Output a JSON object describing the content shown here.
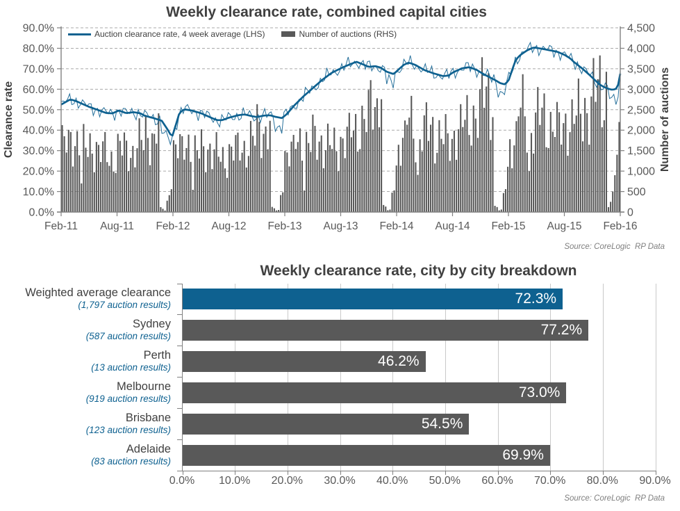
{
  "chart_data": [
    {
      "type": "line+bar",
      "title": "Weekly clearance rate, combined capital cities",
      "legend": [
        {
          "label": "Auction clearance rate, 4 week average (LHS)",
          "marker": "line",
          "color": "#0e6190"
        },
        {
          "label": "Number of auctions (RHS)",
          "marker": "bar",
          "color": "#595959"
        }
      ],
      "ylabel_left": "Clearance rate",
      "ylabel_right": "Number of auctions",
      "ylim_left": [
        0,
        90
      ],
      "ylim_right": [
        0,
        4500
      ],
      "y_left_tick_labels": [
        "0.0%",
        "10.0%",
        "20.0%",
        "30.0%",
        "40.0%",
        "50.0%",
        "60.0%",
        "70.0%",
        "80.0%",
        "90.0%"
      ],
      "y_right_tick_labels": [
        "0",
        "500",
        "1,000",
        "1,500",
        "2,000",
        "2,500",
        "3,000",
        "3,500",
        "4,000",
        "4,500"
      ],
      "x_tick_labels": [
        "Feb-11",
        "Aug-11",
        "Feb-12",
        "Aug-12",
        "Feb-13",
        "Aug-13",
        "Feb-14",
        "Aug-14",
        "Feb-15",
        "Aug-15",
        "Feb-16"
      ],
      "x_range_months": 60,
      "grid": "dashed-horizontal",
      "clearance_4wk_avg_points": [
        [
          0,
          52.5
        ],
        [
          0.7,
          54.3
        ],
        [
          1,
          55
        ],
        [
          1.6,
          54.2
        ],
        [
          2,
          53.4
        ],
        [
          3,
          51.4
        ],
        [
          4,
          49.8
        ],
        [
          4.8,
          48.4
        ],
        [
          5.5,
          48.2
        ],
        [
          6.2,
          49.6
        ],
        [
          7,
          48.3
        ],
        [
          7.8,
          48.8
        ],
        [
          8.5,
          48.2
        ],
        [
          9,
          47
        ],
        [
          10,
          45.8
        ],
        [
          10.8,
          44.6
        ],
        [
          11.4,
          40.5
        ],
        [
          11.9,
          36.6
        ],
        [
          12.3,
          42.5
        ],
        [
          12.7,
          48.5
        ],
        [
          13.2,
          50.2
        ],
        [
          14,
          49.6
        ],
        [
          15,
          48.3
        ],
        [
          16,
          46.3
        ],
        [
          16.7,
          44.9
        ],
        [
          17.3,
          44.9
        ],
        [
          18,
          46.1
        ],
        [
          19,
          47.3
        ],
        [
          19.7,
          47.7
        ],
        [
          20.4,
          46.9
        ],
        [
          21,
          46.4
        ],
        [
          21.7,
          47.1
        ],
        [
          22.4,
          47.3
        ],
        [
          23,
          46.5
        ],
        [
          23.7,
          45.9
        ],
        [
          24.2,
          47.8
        ],
        [
          25,
          52
        ],
        [
          26,
          56.5
        ],
        [
          27,
          60.5
        ],
        [
          28,
          64.5
        ],
        [
          29,
          67.9
        ],
        [
          30,
          70.2
        ],
        [
          31,
          72.2
        ],
        [
          31.7,
          73.4
        ],
        [
          32.3,
          72.3
        ],
        [
          33,
          70.9
        ],
        [
          33.7,
          71.3
        ],
        [
          34.3,
          70.5
        ],
        [
          35,
          68.4
        ],
        [
          35.7,
          67.4
        ],
        [
          36.2,
          69.6
        ],
        [
          36.8,
          72
        ],
        [
          37.3,
          73
        ],
        [
          38,
          71.9
        ],
        [
          39,
          69.3
        ],
        [
          40,
          67.7
        ],
        [
          41,
          66.4
        ],
        [
          41.6,
          66.7
        ],
        [
          42,
          68.1
        ],
        [
          43,
          70.2
        ],
        [
          43.8,
          70.8
        ],
        [
          44.6,
          69.4
        ],
        [
          45.4,
          67.2
        ],
        [
          46,
          65.8
        ],
        [
          46.6,
          64.4
        ],
        [
          47.1,
          63
        ],
        [
          47.6,
          62.4
        ],
        [
          48,
          64
        ],
        [
          48.4,
          69.5
        ],
        [
          48.8,
          74.5
        ],
        [
          49.3,
          76.8
        ],
        [
          50,
          79
        ],
        [
          50.7,
          80.4
        ],
        [
          51.3,
          80
        ],
        [
          52,
          79.4
        ],
        [
          52.7,
          78.8
        ],
        [
          53.3,
          78.2
        ],
        [
          54,
          76.8
        ],
        [
          54.6,
          75.2
        ],
        [
          55,
          73.4
        ],
        [
          56,
          69.8
        ],
        [
          56.7,
          67
        ],
        [
          57.2,
          64.8
        ],
        [
          57.7,
          62.6
        ],
        [
          58.2,
          61.2
        ],
        [
          58.7,
          60.2
        ],
        [
          59.2,
          59.7
        ],
        [
          59.6,
          60.3
        ],
        [
          59.8,
          62.5
        ],
        [
          60,
          67.6
        ]
      ],
      "auctions_weekly_level_by_month": [
        1900,
        2100,
        1800,
        1900,
        1700,
        1550,
        1800,
        1750,
        1950,
        2250,
        2050,
        950,
        1750,
        2050,
        1650,
        1850,
        1650,
        1550,
        1750,
        1850,
        2050,
        2350,
        2150,
        950,
        1650,
        2100,
        1900,
        2100,
        1900,
        1850,
        2100,
        2350,
        2650,
        3050,
        3150,
        1050,
        1950,
        2650,
        2150,
        2450,
        2150,
        2050,
        2350,
        2550,
        2850,
        3400,
        3050,
        1050,
        2050,
        2900,
        2450,
        2750,
        2550,
        2350,
        2650,
        2750,
        3050,
        3450,
        3050,
        1100,
        2050
      ],
      "auctions_last_6_weeks": [
        120,
        250,
        500,
        900,
        1400,
        2200
      ],
      "source": "Source: CoreLogic  RP Data"
    },
    {
      "type": "bar",
      "orientation": "horizontal",
      "title": "Weekly clearance rate, city by city breakdown",
      "categories": [
        "Weighted average clearance",
        "Sydney",
        "Perth",
        "Melbourne",
        "Brisbane",
        "Adelaide"
      ],
      "sub_labels": [
        "(1,797 auction results)",
        "(587 auction results)",
        "(13 auction results)",
        "(919 auction results)",
        "(123 auction results)",
        "(83 auction results)"
      ],
      "values": [
        72.3,
        77.2,
        46.2,
        73.0,
        54.5,
        69.9
      ],
      "value_labels": [
        "72.3%",
        "77.2%",
        "46.2%",
        "73.0%",
        "54.5%",
        "69.9%"
      ],
      "bar_colors": [
        "#0e6190",
        "#595959",
        "#595959",
        "#595959",
        "#595959",
        "#595959"
      ],
      "xlim": [
        0,
        90
      ],
      "x_tick_labels": [
        "0.0%",
        "10.0%",
        "20.0%",
        "30.0%",
        "40.0%",
        "50.0%",
        "60.0%",
        "70.0%",
        "80.0%",
        "90.0%"
      ],
      "grid": "solid-vertical",
      "source": "Source: CoreLogic  RP Data"
    }
  ],
  "colors": {
    "accent_blue": "#0e6190",
    "bar_gray": "#595959",
    "title_gray": "#404040",
    "tick_gray": "#595959",
    "grid_dashed": "#a9a9a9",
    "grid_solid": "#c9c9c9",
    "axis_line": "#808080",
    "source_gray": "#7f7f7f"
  }
}
